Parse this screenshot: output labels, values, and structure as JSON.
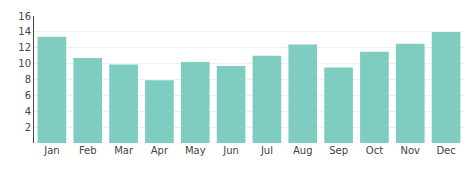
{
  "chart_data": {
    "type": "bar",
    "categories": [
      "Jan",
      "Feb",
      "Mar",
      "Apr",
      "May",
      "Jun",
      "Jul",
      "Aug",
      "Sep",
      "Oct",
      "Nov",
      "Dec"
    ],
    "values": [
      13.4,
      10.7,
      9.9,
      7.9,
      10.2,
      9.7,
      11.0,
      12.4,
      9.5,
      11.5,
      12.5,
      14.0
    ],
    "color": "#7ECDC0",
    "ylim": [
      0,
      16
    ],
    "yticks": [
      2,
      4,
      6,
      8,
      10,
      12,
      14,
      16
    ],
    "grid": true
  }
}
